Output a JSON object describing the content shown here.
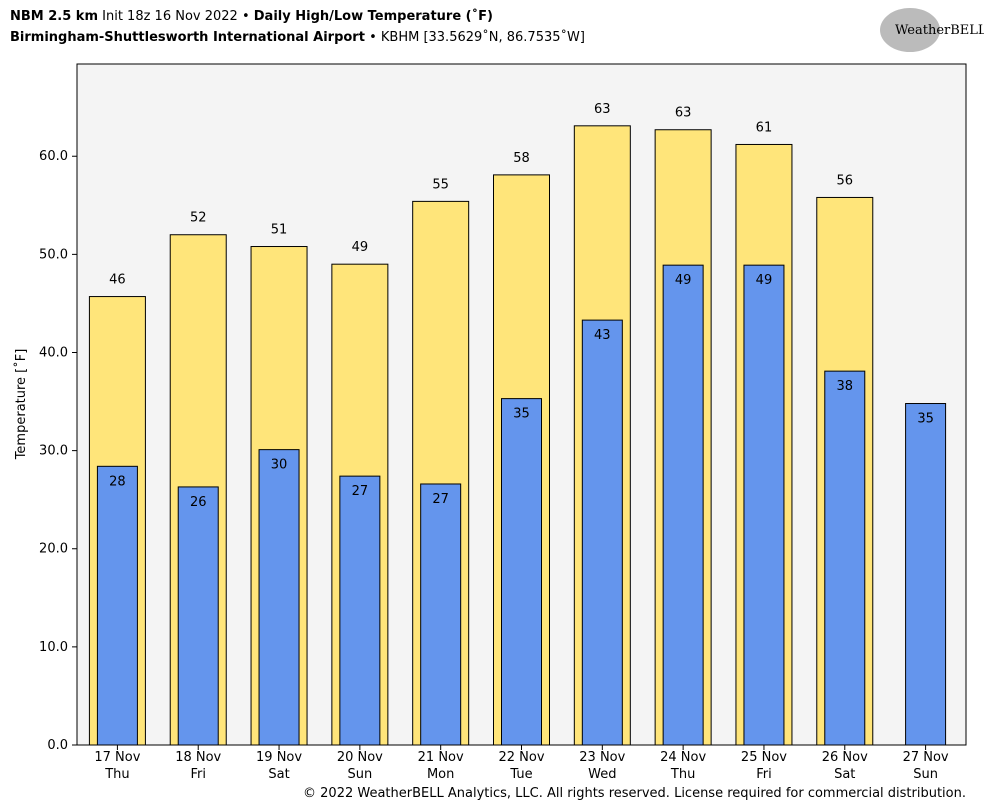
{
  "chart_data": {
    "type": "bar",
    "model": "NBM 2.5 km",
    "init": "Init 18z 16 Nov 2022",
    "title": "Daily High/Low Temperature (˚F)",
    "location": "Birmingham-Shuttlesworth International Airport",
    "station": "KBHM [33.5629˚N, 86.7535˚W]",
    "logo_text": "WeatherBELL",
    "y_label": "Temperature [˚F]",
    "footer": "© 2022 WeatherBELL Analytics, LLC. All rights reserved. License required for commercial distribution.",
    "categories": [
      "17 Nov",
      "18 Nov",
      "19 Nov",
      "20 Nov",
      "21 Nov",
      "22 Nov",
      "23 Nov",
      "24 Nov",
      "25 Nov",
      "26 Nov",
      "27 Nov"
    ],
    "weekdays": [
      "Thu",
      "Fri",
      "Sat",
      "Sun",
      "Mon",
      "Tue",
      "Wed",
      "Thu",
      "Fri",
      "Sat",
      "Sun"
    ],
    "series": [
      {
        "color": "#ffe57a",
        "values": [
          45.7,
          52.0,
          50.8,
          49.0,
          55.4,
          58.1,
          63.1,
          62.7,
          61.2,
          55.8,
          null
        ],
        "value_labels": [
          "46",
          "52",
          "51",
          "49",
          "55",
          "58",
          "63",
          "63",
          "61",
          "56",
          null
        ]
      },
      {
        "color": "#6495ed",
        "values": [
          28.4,
          26.3,
          30.1,
          27.4,
          26.6,
          35.3,
          43.3,
          48.9,
          48.9,
          38.1,
          34.8
        ],
        "value_labels": [
          "28",
          "26",
          "30",
          "27",
          "27",
          "35",
          "43",
          "49",
          "49",
          "38",
          "35"
        ]
      }
    ],
    "ylim": [
      0,
      69.4
    ],
    "yticks": [
      {
        "value": 0,
        "label": "0.0"
      },
      {
        "value": 10,
        "label": "10.0"
      },
      {
        "value": 20,
        "label": "20.0"
      },
      {
        "value": 30,
        "label": "30.0"
      },
      {
        "value": 40,
        "label": "40.0"
      },
      {
        "value": 50,
        "label": "50.0"
      },
      {
        "value": 60,
        "label": "60.0"
      }
    ],
    "plot_background": "#f4f4f4"
  }
}
